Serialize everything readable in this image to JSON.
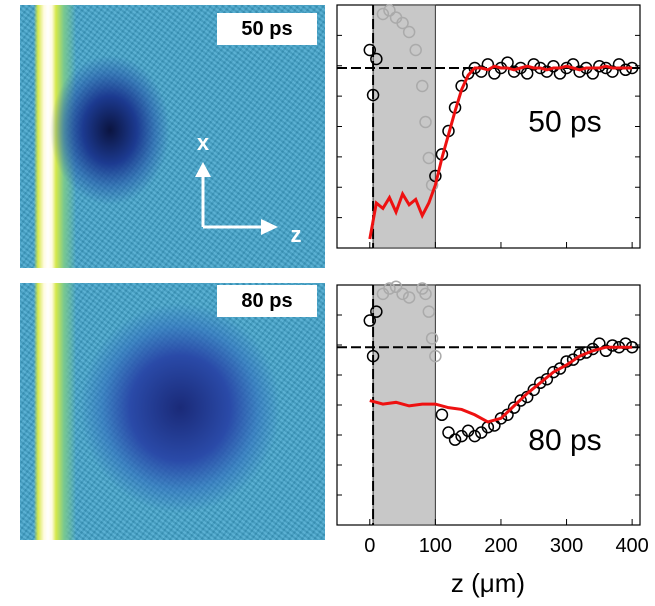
{
  "images": [
    {
      "label": "50 ps",
      "axes": [
        "x",
        "z"
      ]
    },
    {
      "label": "80 ps"
    }
  ],
  "chart_data": [
    {
      "type": "line",
      "annotation": "50 ps",
      "xlim": [
        -50,
        412
      ],
      "ylim": [
        0,
        1.35
      ],
      "xticks": [
        0,
        100,
        200,
        300,
        400
      ],
      "hline": 1,
      "vline": 5,
      "shade": [
        5,
        100
      ],
      "series": [
        {
          "style": "markers",
          "color": "#aaaaaa",
          "x": [
            20,
            30,
            40,
            50,
            60,
            70,
            80,
            85,
            90,
            95
          ],
          "values": [
            1.3,
            1.32,
            1.28,
            1.25,
            1.2,
            1.1,
            0.9,
            0.7,
            0.5,
            0.35
          ]
        },
        {
          "style": "markers",
          "color": "#000000",
          "x": [
            0,
            5,
            10,
            100,
            110,
            120,
            130,
            140,
            150,
            160,
            170,
            180,
            190,
            200,
            210,
            220,
            230,
            240,
            250,
            260,
            270,
            280,
            290,
            300,
            310,
            320,
            330,
            340,
            350,
            360,
            370,
            380,
            390,
            400
          ],
          "values": [
            1.1,
            0.85,
            1.05,
            0.4,
            0.52,
            0.65,
            0.78,
            0.9,
            0.97,
            1.0,
            0.98,
            1.02,
            0.97,
            1.0,
            1.03,
            0.98,
            1.0,
            0.97,
            1.02,
            1.0,
            0.98,
            1.01,
            0.97,
            1.0,
            1.02,
            0.98,
            1.0,
            0.97,
            1.01,
            1.0,
            0.98,
            1.02,
            0.99,
            1.0
          ]
        },
        {
          "style": "line",
          "color": "#ee1111",
          "x": [
            0,
            10,
            20,
            30,
            40,
            50,
            60,
            70,
            80,
            90,
            100,
            110,
            120,
            130,
            140,
            150,
            160,
            170,
            180,
            190,
            200,
            210,
            220,
            230,
            240,
            250,
            260,
            270,
            280,
            290,
            300,
            310,
            320,
            330,
            340,
            350,
            360,
            370,
            380,
            390,
            400
          ],
          "values": [
            0.05,
            0.25,
            0.22,
            0.28,
            0.2,
            0.3,
            0.24,
            0.27,
            0.18,
            0.25,
            0.35,
            0.5,
            0.63,
            0.76,
            0.88,
            0.96,
            1.0,
            1.0,
            0.99,
            1.01,
            1.0,
            1.0,
            0.99,
            1.0,
            1.01,
            1.0,
            1.0,
            0.99,
            1.0,
            1.0,
            1.01,
            1.0,
            0.99,
            1.0,
            1.0,
            1.0,
            1.01,
            1.0,
            1.0,
            1.0,
            1.0
          ]
        }
      ]
    },
    {
      "type": "line",
      "annotation": "80 ps",
      "xlim": [
        -50,
        412
      ],
      "ylim": [
        0,
        1.35
      ],
      "xticks": [
        0,
        100,
        200,
        300,
        400
      ],
      "xlabel": "z (μm)",
      "hline": 1,
      "vline": 5,
      "shade": [
        5,
        100
      ],
      "series": [
        {
          "style": "markers",
          "color": "#aaaaaa",
          "x": [
            20,
            30,
            40,
            50,
            60,
            80,
            85,
            90,
            95,
            100
          ],
          "values": [
            1.3,
            1.33,
            1.34,
            1.3,
            1.28,
            1.33,
            1.3,
            1.2,
            1.05,
            0.95
          ]
        },
        {
          "style": "markers",
          "color": "#000000",
          "x": [
            0,
            5,
            10,
            110,
            120,
            130,
            140,
            150,
            160,
            170,
            180,
            190,
            200,
            210,
            220,
            230,
            240,
            250,
            260,
            270,
            280,
            290,
            300,
            310,
            320,
            330,
            340,
            350,
            360,
            370,
            380,
            390,
            400
          ],
          "values": [
            1.15,
            0.95,
            1.2,
            0.62,
            0.52,
            0.48,
            0.5,
            0.53,
            0.5,
            0.52,
            0.55,
            0.56,
            0.6,
            0.62,
            0.66,
            0.7,
            0.72,
            0.76,
            0.8,
            0.82,
            0.86,
            0.88,
            0.92,
            0.93,
            0.96,
            0.97,
            0.99,
            1.02,
            0.98,
            1.01,
            1.0,
            1.02,
            1.0
          ]
        },
        {
          "style": "line",
          "color": "#ee1111",
          "x": [
            0,
            20,
            40,
            60,
            80,
            100,
            120,
            140,
            160,
            180,
            200,
            220,
            240,
            260,
            280,
            300,
            320,
            340,
            360,
            380,
            400
          ],
          "values": [
            0.7,
            0.68,
            0.69,
            0.67,
            0.68,
            0.68,
            0.66,
            0.65,
            0.62,
            0.58,
            0.6,
            0.67,
            0.74,
            0.8,
            0.86,
            0.9,
            0.95,
            0.98,
            1.0,
            1.0,
            1.0
          ]
        }
      ]
    }
  ]
}
